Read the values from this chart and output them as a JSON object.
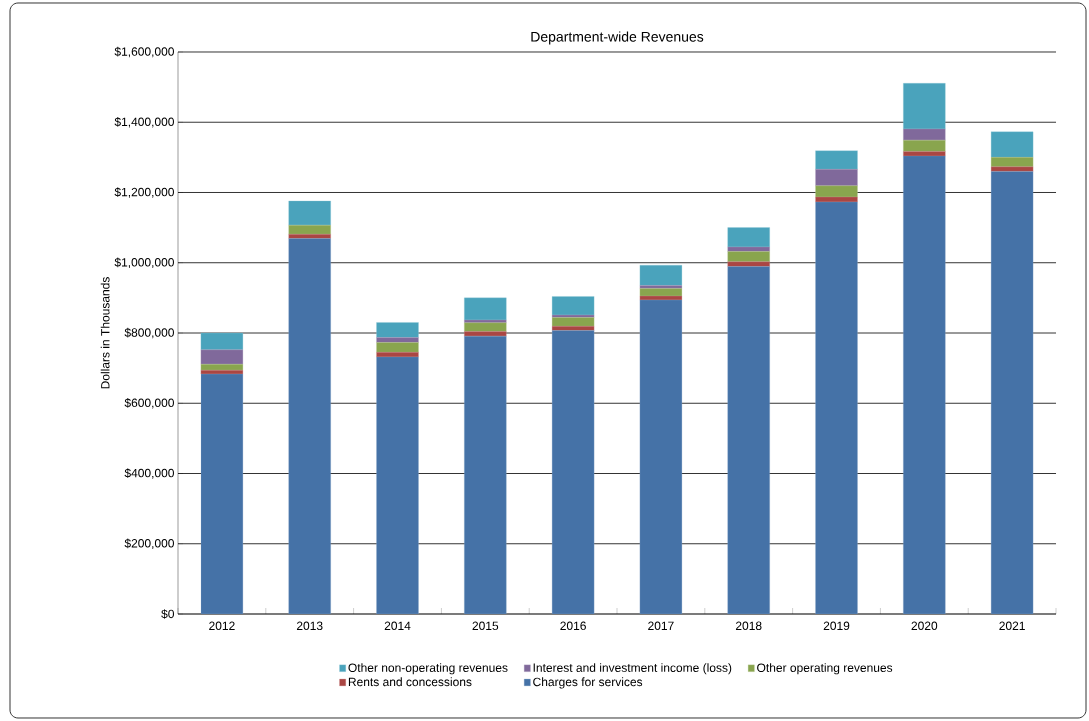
{
  "chart_data": {
    "type": "bar",
    "stacked": true,
    "title": "Department-wide  Revenues",
    "ylabel": "Dollars in Thousands",
    "categories": [
      "2012",
      "2013",
      "2014",
      "2015",
      "2016",
      "2017",
      "2018",
      "2019",
      "2020",
      "2021"
    ],
    "series": [
      {
        "name": "Charges for services",
        "color": "#4572a7",
        "values": [
          683000,
          1069000,
          732000,
          791000,
          807000,
          894000,
          989000,
          1173000,
          1304000,
          1260000
        ]
      },
      {
        "name": "Rents and concessions",
        "color": "#aa4643",
        "values": [
          11000,
          12000,
          13000,
          13000,
          12000,
          11000,
          14000,
          14000,
          13000,
          13000
        ]
      },
      {
        "name": "Other operating revenues",
        "color": "#89a54e",
        "values": [
          17000,
          26000,
          28000,
          25000,
          25000,
          22000,
          29000,
          32000,
          32000,
          27000
        ]
      },
      {
        "name": "Interest and investment income (loss)",
        "color": "#80699b",
        "values": [
          41000,
          0,
          14000,
          8000,
          7000,
          8000,
          13000,
          47000,
          32000,
          0
        ]
      },
      {
        "name": "Other non-operating revenues",
        "color": "#4aa3bc",
        "values": [
          48000,
          69000,
          43000,
          63000,
          53000,
          58000,
          55000,
          53000,
          130000,
          73000
        ]
      }
    ],
    "ylim": [
      0,
      1600000
    ],
    "yticks": [
      {
        "value": 0,
        "label": "$0"
      },
      {
        "value": 200000,
        "label": "$200,000"
      },
      {
        "value": 400000,
        "label": "$400,000"
      },
      {
        "value": 600000,
        "label": "$600,000"
      },
      {
        "value": 800000,
        "label": "$800,000"
      },
      {
        "value": 1000000,
        "label": "$1,000,000"
      },
      {
        "value": 1200000,
        "label": "$1,200,000"
      },
      {
        "value": 1400000,
        "label": "$1,400,000"
      },
      {
        "value": 1600000,
        "label": "$1,600,000"
      }
    ],
    "grid": "y",
    "legend": "bottom"
  }
}
